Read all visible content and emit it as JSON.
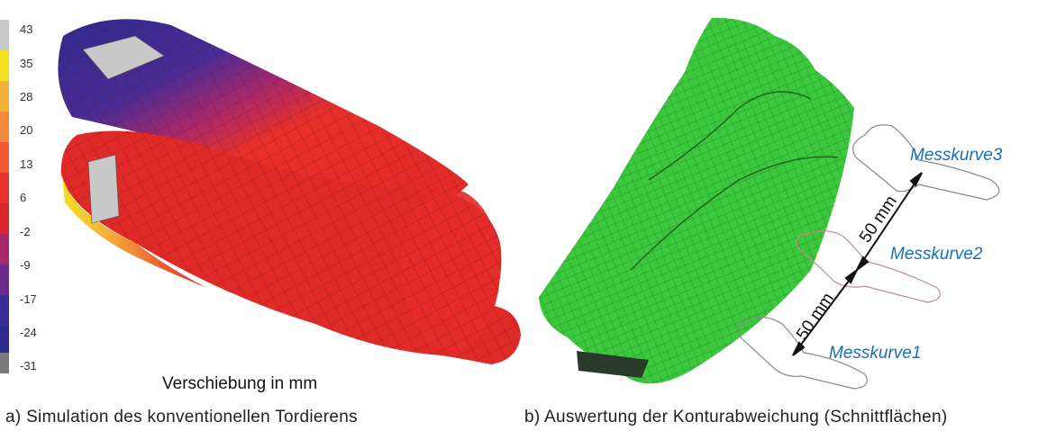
{
  "legend": {
    "labels": [
      "43",
      "35",
      "28",
      "20",
      "13",
      "6",
      "-2",
      "-9",
      "-17",
      "-24",
      "-31"
    ],
    "colors": [
      "#c8c8c8",
      "#f4e21f",
      "#f5b23a",
      "#f08a3a",
      "#ef5a32",
      "#e8302a",
      "#d8242a",
      "#a8286a",
      "#6a2a8a",
      "#3a2e96",
      "#2e2a8e",
      "#7a7a7a"
    ]
  },
  "left_panel": {
    "axis_caption": "Verschiebung in mm",
    "caption": "a) Simulation des konventionellen Tordierens"
  },
  "right_panel": {
    "curves": [
      "Messkurve3",
      "Messkurve2",
      "Messkurve1"
    ],
    "dimensions": [
      "50 mm",
      "50 mm"
    ],
    "caption": "b) Auswertung der Konturabweichung (Schnittflächen)"
  },
  "colors": {
    "mesh_green": "#3cc83c",
    "mesh_red": "#e8302a",
    "label_blue": "#1a6fb5"
  }
}
